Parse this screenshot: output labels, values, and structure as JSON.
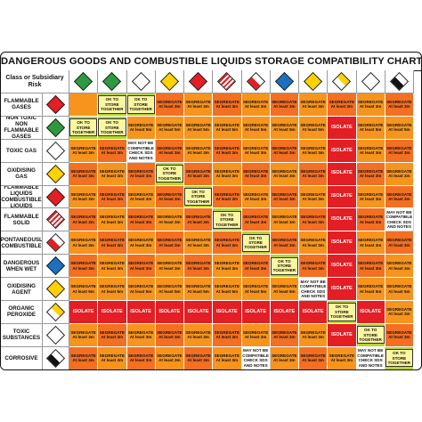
{
  "title": "DANGEROUS GOODS AND COMBUSTIBLE LIQUIDS STORAGE COMPATIBILITY CHART",
  "corner_label": "Class or Subsidiary Risk",
  "classes": [
    {
      "label": "FLAMMABLE GASES",
      "icon": "flammable-gas-diamond-icon",
      "style": "d-red"
    },
    {
      "label": "NON TOXIC NON FLAMMABLE GASES",
      "icon": "non-flammable-gas-diamond-icon",
      "style": "d-green"
    },
    {
      "label": "TOXIC GAS",
      "icon": "toxic-gas-diamond-icon",
      "style": "d-white"
    },
    {
      "label": "OXIDISING GAS",
      "icon": "oxidising-gas-diamond-icon",
      "style": "d-yellow"
    },
    {
      "label": "FLAMMABLE LIQUIDS COMBUSTIBLE LIQUIDS",
      "icon": "flammable-liquid-diamond-icon",
      "style": "d-red"
    },
    {
      "label": "FLAMMABLE SOLID",
      "icon": "flammable-solid-diamond-icon",
      "style": "d-stripe"
    },
    {
      "label": "SPONTANEOUSLY COMBUSTIBLE",
      "icon": "spontaneously-combustible-diamond-icon",
      "style": "d-split"
    },
    {
      "label": "DANGEROUS WHEN WET",
      "icon": "dangerous-when-wet-diamond-icon",
      "style": "d-blue"
    },
    {
      "label": "OXIDISING AGENT",
      "icon": "oxidising-agent-diamond-icon",
      "style": "d-yellow"
    },
    {
      "label": "ORGANIC PEROXIDE",
      "icon": "organic-peroxide-diamond-icon",
      "style": "d-yellowwhite"
    },
    {
      "label": "TOXIC SUBSTANCES",
      "icon": "toxic-substance-diamond-icon",
      "style": "d-white"
    },
    {
      "label": "CORROSIVE",
      "icon": "corrosive-diamond-icon",
      "style": "d-blackwhite"
    }
  ],
  "header_icons": [
    {
      "icon": "non-flammable-gas-header-icon",
      "style": "d-green"
    },
    {
      "icon": "flammable-gas-header-icon",
      "style": "d-green"
    },
    {
      "icon": "toxic-gas-header-icon",
      "style": "d-white"
    },
    {
      "icon": "oxidising-gas-header-icon",
      "style": "d-yellow"
    },
    {
      "icon": "flammable-liquid-header-icon",
      "style": "d-red"
    },
    {
      "icon": "flammable-solid-header-icon",
      "style": "d-stripe"
    },
    {
      "icon": "spontaneously-combustible-header-icon",
      "style": "d-split"
    },
    {
      "icon": "dangerous-when-wet-header-icon",
      "style": "d-blue"
    },
    {
      "icon": "oxidising-agent-header-icon",
      "style": "d-yellow"
    },
    {
      "icon": "organic-peroxide-header-icon",
      "style": "d-yellowwhite"
    },
    {
      "icon": "toxic-substance-header-icon",
      "style": "d-white"
    },
    {
      "icon": "corrosive-header-icon",
      "style": "d-blackwhite"
    }
  ],
  "legend_text": {
    "ok": "OK TO STORE TOGETHER",
    "segregate": "SEGREGATE At least 3m",
    "segregate_5m": "SEGREGATE At least 5m",
    "isolate": "ISOLATE",
    "nm": "MAY NOT BE COMPATIBLE CHECK SDS AND NOTES"
  },
  "matrix": [
    [
      "blank",
      "ok",
      "ok",
      "seg3",
      "seg3",
      "seg3",
      "seg3",
      "seg3",
      "seg3",
      "seg3",
      "seg3",
      "seg3"
    ],
    [
      "ok",
      "ok",
      "seg5",
      "seg5",
      "seg5",
      "seg5",
      "seg5",
      "seg5",
      "seg5",
      "iso",
      "seg5",
      "seg5"
    ],
    [
      "seg3",
      "seg3",
      "nm",
      "seg3",
      "seg3",
      "seg3",
      "seg3",
      "seg3",
      "seg3",
      "iso",
      "seg3",
      "seg3"
    ],
    [
      "seg3",
      "seg3",
      "seg3",
      "ok",
      "seg3",
      "seg3",
      "seg3",
      "seg3",
      "seg3",
      "iso",
      "seg3",
      "seg3"
    ],
    [
      "seg3",
      "seg3",
      "seg3",
      "seg3",
      "ok",
      "seg3",
      "seg3",
      "seg3",
      "seg3",
      "iso",
      "seg3",
      "seg3"
    ],
    [
      "seg3",
      "seg3",
      "seg3",
      "seg3",
      "seg3",
      "ok",
      "seg3",
      "seg3",
      "seg3",
      "iso",
      "seg3",
      "nm"
    ],
    [
      "seg3",
      "seg3",
      "seg3",
      "seg3",
      "seg3",
      "seg3",
      "ok",
      "seg3",
      "seg3",
      "iso",
      "seg3",
      "seg3"
    ],
    [
      "seg3",
      "seg3",
      "seg3",
      "seg3",
      "seg3",
      "seg3",
      "seg3",
      "ok",
      "seg3",
      "iso",
      "seg3",
      "seg3"
    ],
    [
      "seg5",
      "seg5",
      "seg5",
      "seg5",
      "seg5",
      "seg5",
      "seg5",
      "seg5",
      "nm",
      "iso",
      "seg5",
      "seg5"
    ],
    [
      "iso",
      "iso",
      "iso",
      "iso",
      "iso",
      "iso",
      "iso",
      "iso",
      "iso",
      "ok",
      "iso",
      "seg3"
    ],
    [
      "seg3",
      "seg3",
      "seg3",
      "seg3",
      "seg3",
      "seg3",
      "seg3",
      "seg3",
      "seg3",
      "iso",
      "ok",
      "seg3"
    ],
    [
      "seg3",
      "seg3",
      "seg3",
      "seg3",
      "seg3",
      "seg3",
      "nm",
      "seg3",
      "seg3",
      "seg3",
      "nm",
      "ok"
    ]
  ],
  "colors": {
    "segregate": "#f7941d",
    "isolate": "#e31e24",
    "ok": "#b6d433",
    "ok_box": "#fdf6a1"
  }
}
